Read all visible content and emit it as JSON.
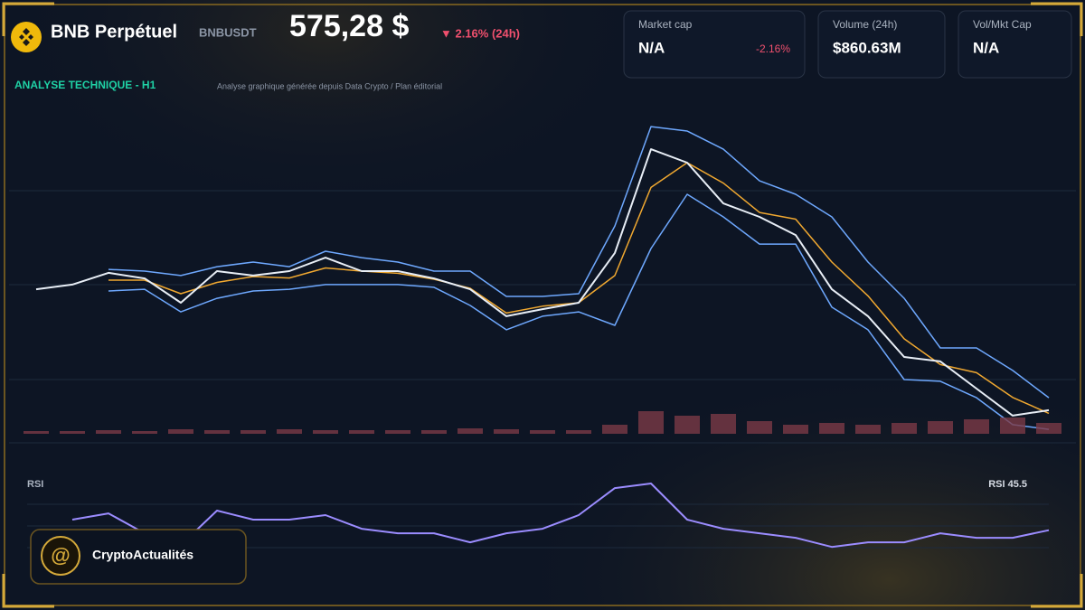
{
  "header": {
    "title": "BNB Perpétuel",
    "symbol": "BNBUSDT",
    "price": "575,28 $",
    "change": "▼ 2.16% (24h)",
    "section": "ANALYSE TECHNIQUE - H1",
    "subtitle": "Analyse graphique générée depuis Data Crypto / Plan éditorial"
  },
  "cards": [
    {
      "label": "Market cap",
      "value": "N/A",
      "note": "-2.16%"
    },
    {
      "label": "Volume (24h)",
      "value": "$860.63M"
    },
    {
      "label": "Vol/Mkt Cap",
      "value": "N/A"
    }
  ],
  "brand": "CryptoActualités",
  "chart_data": [
    {
      "type": "line",
      "x": [
        0,
        1,
        2,
        3,
        4,
        5,
        6,
        7,
        8,
        9,
        10,
        11,
        12,
        13,
        14,
        15,
        16,
        17,
        18,
        19,
        20,
        21,
        22,
        23,
        24,
        25,
        26,
        27,
        28
      ],
      "xlim": [
        0,
        28
      ],
      "ylim": [
        562,
        702
      ],
      "series": [
        {
          "color": "#6ea8fe",
          "values": [
            null,
            null,
            632.7,
            632.0,
            630.2,
            633.8,
            635.7,
            633.8,
            640.1,
            637.5,
            635.7,
            632.0,
            632.0,
            621.7,
            621.7,
            622.8,
            650.4,
            690.9,
            689.1,
            681.7,
            668.8,
            663.3,
            654.1,
            635.7,
            620.9,
            600.7,
            600.7,
            591.5,
            580.4
          ]
        },
        {
          "color": "#f0a830",
          "values": [
            null,
            null,
            628.3,
            628.3,
            622.8,
            627.4,
            629.8,
            629.2,
            633.3,
            632.0,
            631.1,
            628.7,
            625.0,
            614.9,
            617.7,
            619.1,
            630.2,
            666.1,
            676.2,
            667.9,
            655.9,
            653.2,
            635.7,
            621.9,
            604.4,
            593.9,
            590.6,
            580.5,
            574.0
          ]
        },
        {
          "color": "#6ea8fe",
          "values": [
            null,
            null,
            623.9,
            624.6,
            615.4,
            620.9,
            623.9,
            624.6,
            626.5,
            626.5,
            626.5,
            625.4,
            618.0,
            608.1,
            613.6,
            615.4,
            609.9,
            641.2,
            663.3,
            654.1,
            643.0,
            643.0,
            617.3,
            608.1,
            587.8,
            587.1,
            580.4,
            569.4,
            567.5
          ]
        },
        {
          "color": "#e8eef6",
          "values": [
            624.6,
            626.5,
            631.3,
            629.0,
            619.1,
            632.0,
            630.2,
            632.0,
            637.5,
            632.0,
            632.0,
            629.0,
            624.6,
            613.6,
            616.5,
            619.1,
            639.4,
            681.7,
            676.2,
            659.6,
            654.1,
            646.7,
            624.6,
            613.6,
            597.0,
            595.2,
            584.1,
            573.1,
            575.3
          ]
        }
      ]
    },
    {
      "type": "bar",
      "color": "#7a3a46",
      "ylim": [
        0,
        50
      ],
      "values": [
        3,
        3,
        4,
        3,
        5,
        4,
        4,
        5,
        4,
        4,
        4,
        4,
        6,
        5,
        4,
        4,
        10,
        25,
        20,
        22,
        14,
        10,
        12,
        10,
        12,
        14,
        16,
        18,
        12
      ]
    },
    {
      "type": "line",
      "title": "RSI",
      "label": "RSI 45.5",
      "x": [
        0,
        1,
        2,
        3,
        4,
        5,
        6,
        7,
        8,
        9,
        10,
        11,
        12,
        13,
        14,
        15,
        16,
        17,
        18,
        19,
        20,
        21,
        22,
        23,
        24,
        25,
        26,
        27,
        28
      ],
      "xlim": [
        0,
        28
      ],
      "ylim": [
        32,
        75
      ],
      "series": [
        {
          "color": "#9b8cff",
          "values": [
            null,
            51.1,
            54.4,
            43.9,
            37.7,
            55.9,
            51.1,
            51.1,
            53.5,
            46.3,
            43.9,
            43.9,
            39.1,
            43.9,
            46.3,
            53.5,
            67.8,
            70.2,
            51.1,
            46.3,
            43.9,
            41.5,
            36.7,
            39.1,
            39.1,
            43.9,
            41.5,
            41.5,
            45.5
          ]
        }
      ]
    }
  ]
}
